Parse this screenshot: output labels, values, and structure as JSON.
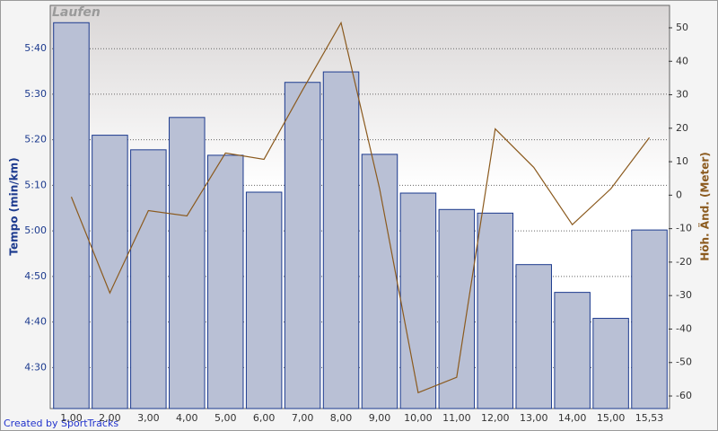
{
  "chart_data": {
    "type": "bar",
    "title": "Laufen",
    "credit": "Created by SportTracks",
    "y_label": "Tempo (min/km)",
    "y2_label": "Höh. Änd. (Meter)",
    "categories": [
      "1,00",
      "2,00",
      "3,00",
      "4,00",
      "5,00",
      "6,00",
      "7,00",
      "8,00",
      "9,00",
      "10,00",
      "11,00",
      "12,00",
      "13,00",
      "14,00",
      "15,00",
      "15,53"
    ],
    "series": [
      {
        "type": "bar",
        "color": "#b9c0d5",
        "edge": "#1c3a8e",
        "values": [
          345.7,
          321,
          317.8,
          324.9,
          316.6,
          308.5,
          332.6,
          334.9,
          316.8,
          308.3,
          304.7,
          303.9,
          292.6,
          286.5,
          280.8,
          300.2
        ]
      },
      {
        "type": "line",
        "axis": "y2",
        "color": "#8b5a1e",
        "values": [
          -0.5,
          -29.2,
          -4.6,
          -6.2,
          12.6,
          10.7,
          31.4,
          51.5,
          1.9,
          -59,
          -54.4,
          19.8,
          8.3,
          -8.8,
          1.9,
          17.2
        ]
      }
    ],
    "ylim": [
      261,
      349.5
    ],
    "yticks": [
      {
        "value": 270,
        "label": "4:30"
      },
      {
        "value": 280,
        "label": "4:40"
      },
      {
        "value": 290,
        "label": "4:50"
      },
      {
        "value": 300,
        "label": "5:00"
      },
      {
        "value": 310,
        "label": "5:10"
      },
      {
        "value": 320,
        "label": "5:20"
      },
      {
        "value": 330,
        "label": "5:30"
      },
      {
        "value": 340,
        "label": "5:40"
      }
    ],
    "y2lim": [
      -63.75,
      56.7
    ],
    "y2ticks": [
      -60,
      -50,
      -40,
      -30,
      -20,
      -10,
      0,
      10,
      20,
      30,
      40,
      50
    ],
    "grid": true
  }
}
